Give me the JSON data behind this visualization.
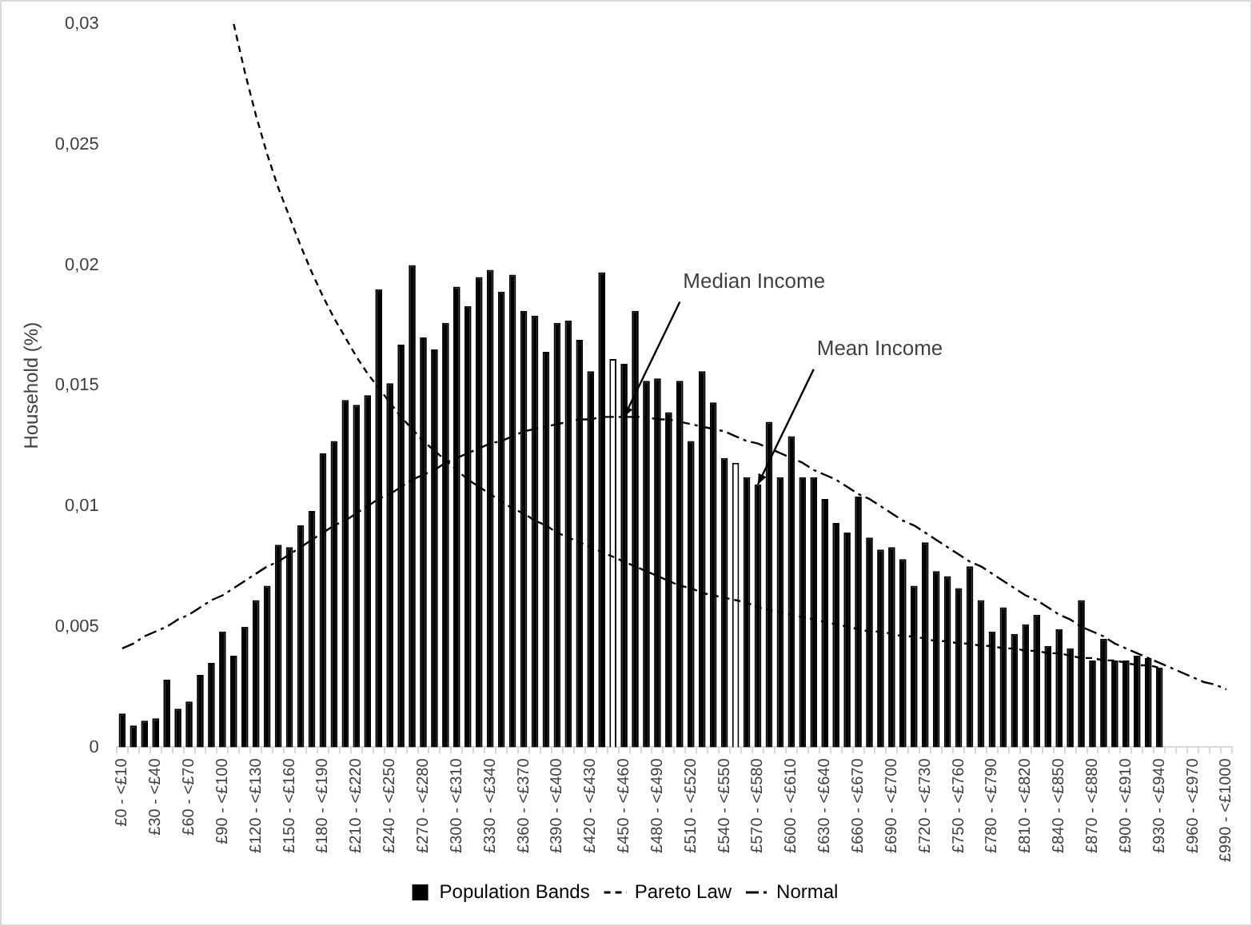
{
  "chart_data": {
    "type": "bar",
    "ylabel": "Household (%)",
    "categories": [
      "£0 - <£10",
      null,
      null,
      "£30 - <£40",
      null,
      null,
      "£60 - <£70",
      null,
      null,
      "£90 - <£100",
      null,
      null,
      "£120 - <£130",
      null,
      null,
      "£150 - <£160",
      null,
      null,
      "£180 - <£190",
      null,
      null,
      "£210 - <£220",
      null,
      null,
      "£240 - <£250",
      null,
      null,
      "£270 - <£280",
      null,
      null,
      "£300 - <£310",
      null,
      null,
      "£330 - <£340",
      null,
      null,
      "£360 - <£370",
      null,
      null,
      "£390 - <£400",
      null,
      null,
      "£420 - <£430",
      null,
      null,
      "£450 - <£460",
      null,
      null,
      "£480 - <£490",
      null,
      null,
      "£510 - <£520",
      null,
      null,
      "£540 - <£550",
      null,
      null,
      "£570 - <£580",
      null,
      null,
      "£600 - <£610",
      null,
      null,
      "£630 - <£640",
      null,
      null,
      "£660 - <£670",
      null,
      null,
      "£690 - <£700",
      null,
      null,
      "£720 - <£730",
      null,
      null,
      "£750 - <£760",
      null,
      null,
      "£780 - <£790",
      null,
      null,
      "£810 - <£820",
      null,
      null,
      "£840 - <£850",
      null,
      null,
      "£870 - <£880",
      null,
      null,
      "£900 - <£910",
      null,
      null,
      "£930 - <£940",
      null,
      null,
      "£960 - <£970",
      null,
      null,
      "£990 - <£1000"
    ],
    "series": [
      {
        "name": "Population Bands",
        "type": "bar",
        "color": "#000000",
        "colors": [
          "#000000",
          "#000000",
          "#000000",
          "#000000",
          "#000000",
          "#000000",
          "#000000",
          "#000000",
          "#000000",
          "#000000",
          "#000000",
          "#000000",
          "#000000",
          "#000000",
          "#000000",
          "#000000",
          "#000000",
          "#000000",
          "#000000",
          "#000000",
          "#000000",
          "#000000",
          "#000000",
          "#000000",
          "#000000",
          "#000000",
          "#000000",
          "#000000",
          "#000000",
          "#000000",
          "#000000",
          "#000000",
          "#000000",
          "#000000",
          "#000000",
          "#000000",
          "#000000",
          "#000000",
          "#000000",
          "#000000",
          "#000000",
          "#000000",
          "#000000",
          "#000000",
          "#ffffff",
          "#000000",
          "#000000",
          "#000000",
          "#000000",
          "#000000",
          "#000000",
          "#000000",
          "#000000",
          "#000000",
          "#000000",
          "#ffffff",
          "#000000",
          "#000000",
          "#000000",
          "#000000",
          "#000000",
          "#000000",
          "#000000",
          "#000000",
          "#000000",
          "#000000",
          "#000000",
          "#000000",
          "#000000",
          "#000000",
          "#000000",
          "#000000",
          "#000000",
          "#000000",
          "#000000",
          "#000000",
          "#000000",
          "#000000",
          "#000000",
          "#000000",
          "#000000",
          "#000000",
          "#000000",
          "#000000",
          "#000000",
          "#000000",
          "#000000",
          "#000000",
          "#000000",
          "#000000",
          "#000000",
          "#000000",
          "#000000",
          "#000000",
          "#000000",
          "#000000",
          "#000000",
          "#000000",
          "#000000",
          "#000000"
        ],
        "values": [
          0.0014,
          0.0009,
          0.0011,
          0.0012,
          0.0028,
          0.0016,
          0.0019,
          0.003,
          0.0035,
          0.0048,
          0.0038,
          0.005,
          0.0061,
          0.0067,
          0.0084,
          0.0083,
          0.0092,
          0.0098,
          0.0122,
          0.0127,
          0.0144,
          0.0142,
          0.0146,
          0.019,
          0.0151,
          0.0167,
          0.02,
          0.017,
          0.0165,
          0.0176,
          0.0191,
          0.0183,
          0.0195,
          0.0198,
          0.0189,
          0.0196,
          0.0181,
          0.0179,
          0.0164,
          0.0176,
          0.0177,
          0.0169,
          0.0156,
          0.0197,
          0.0161,
          0.0159,
          0.0181,
          0.0152,
          0.0153,
          0.0139,
          0.0152,
          0.0127,
          0.0156,
          0.0143,
          0.012,
          0.0118,
          0.0112,
          0.0109,
          0.0135,
          0.0112,
          0.0129,
          0.0112,
          0.0112,
          0.0103,
          0.0093,
          0.0089,
          0.0104,
          0.0087,
          0.0082,
          0.0083,
          0.0078,
          0.0067,
          0.0085,
          0.0073,
          0.0071,
          0.0066,
          0.0075,
          0.0061,
          0.0048,
          0.0058,
          0.0047,
          0.0051,
          0.0055,
          0.0042,
          0.0049,
          0.0041,
          0.0061,
          0.0036,
          0.0045,
          0.0036,
          0.0036,
          0.0038,
          0.0037,
          0.0033,
          null,
          null,
          null,
          null,
          null,
          null
        ]
      },
      {
        "name": "Pareto Law",
        "type": "line",
        "color": "#000000",
        "line_style": "dashed",
        "values": [
          null,
          null,
          null,
          null,
          null,
          null,
          null,
          null,
          null,
          null,
          0.03,
          0.028,
          0.0262,
          0.0246,
          0.0232,
          0.022,
          0.0208,
          0.0197,
          0.0187,
          0.0178,
          0.017,
          0.0162,
          0.0155,
          0.0149,
          0.0143,
          0.0137,
          0.0132,
          0.0127,
          0.0123,
          0.0119,
          0.0115,
          0.0111,
          0.0108,
          0.0105,
          0.0102,
          0.0099,
          0.0097,
          0.0094,
          0.0092,
          0.0089,
          0.0087,
          0.0085,
          0.0083,
          0.0081,
          0.0079,
          0.0077,
          0.0075,
          0.0073,
          0.0071,
          0.0069,
          0.0067,
          0.0066,
          0.0064,
          0.0063,
          0.0062,
          0.0061,
          0.006,
          0.0058,
          0.0057,
          0.0056,
          0.0055,
          0.0054,
          0.0053,
          0.0052,
          0.0051,
          0.005,
          0.0049,
          0.0048,
          0.0048,
          0.0047,
          0.0046,
          0.0046,
          0.0045,
          0.0044,
          0.0044,
          0.0043,
          0.0043,
          0.0042,
          0.0042,
          0.0041,
          0.0041,
          0.004,
          0.004,
          0.0039,
          0.0039,
          0.0038,
          0.0037,
          0.0037,
          0.0036,
          0.0036,
          0.0035,
          0.0034,
          0.0034,
          0.0033,
          null,
          null,
          null,
          null,
          null,
          null
        ]
      },
      {
        "name": "Normal",
        "type": "line",
        "color": "#000000",
        "line_style": "dashdot",
        "values": [
          0.0041,
          0.0043,
          0.0046,
          0.0048,
          0.005,
          0.0053,
          0.0055,
          0.0058,
          0.0061,
          0.0063,
          0.0066,
          0.0069,
          0.0072,
          0.0075,
          0.0077,
          0.008,
          0.0083,
          0.0086,
          0.0089,
          0.0092,
          0.0094,
          0.0097,
          0.01,
          0.0103,
          0.0105,
          0.0108,
          0.0111,
          0.0113,
          0.0115,
          0.0118,
          0.012,
          0.0122,
          0.0124,
          0.0126,
          0.0127,
          0.0129,
          0.0131,
          0.0132,
          0.0133,
          0.0134,
          0.0135,
          0.0136,
          0.0136,
          0.0137,
          0.0137,
          0.0137,
          0.0137,
          0.0137,
          0.0136,
          0.0136,
          0.0135,
          0.0134,
          0.0133,
          0.0132,
          0.0131,
          0.0129,
          0.0127,
          0.0126,
          0.0124,
          0.0122,
          0.012,
          0.0118,
          0.0115,
          0.0113,
          0.0111,
          0.0108,
          0.0105,
          0.0103,
          0.01,
          0.0097,
          0.0094,
          0.0092,
          0.0089,
          0.0086,
          0.0083,
          0.008,
          0.0077,
          0.0075,
          0.0072,
          0.0069,
          0.0066,
          0.0063,
          0.0061,
          0.0058,
          0.0055,
          0.0053,
          0.005,
          0.0048,
          0.0046,
          0.0043,
          0.0041,
          0.0039,
          0.0037,
          0.0035,
          0.0033,
          0.0031,
          0.0029,
          0.0027,
          0.0026,
          0.0024
        ]
      }
    ],
    "annotations": [
      {
        "text": "Median Income",
        "x": "£450 - <£460",
        "y": 0.0137
      },
      {
        "text": "Mean Income",
        "x": "£570 - <£580",
        "y": 0.0109
      }
    ],
    "ylim": [
      0,
      0.03
    ],
    "yticks": [
      0,
      {
        "value": 0.005,
        "label": "0,005"
      },
      {
        "value": 0.01,
        "label": "0,01"
      },
      {
        "value": 0.015,
        "label": "0,015"
      },
      {
        "value": 0.02,
        "label": "0,02"
      },
      {
        "value": 0.025,
        "label": "0,025"
      },
      {
        "value": 0.03,
        "label": "0,03"
      }
    ],
    "grid": false,
    "legend": "bottom",
    "marker": "none"
  }
}
